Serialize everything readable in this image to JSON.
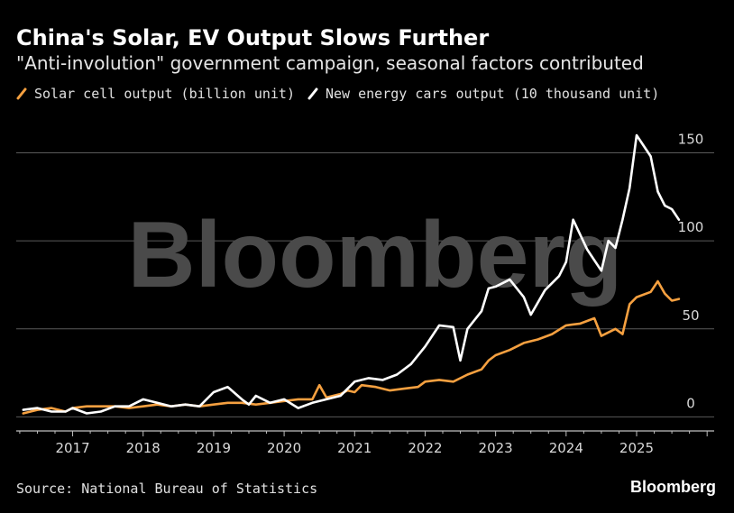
{
  "header": {
    "title": "China's Solar, EV Output Slows Further",
    "subtitle": "\"Anti-involution\" government campaign, seasonal factors contributed"
  },
  "legend": [
    {
      "label": "Solar cell output (billion unit)",
      "color": "#f5a040"
    },
    {
      "label": "New energy cars output (10 thousand unit)",
      "color": "#ffffff"
    }
  ],
  "footer": {
    "source": "Source: National Bureau of Statistics",
    "brand": "Bloomberg"
  },
  "watermark": "Bloomberg",
  "chart_data": {
    "type": "line",
    "title": "China's Solar, EV Output Slows Further",
    "subtitle": "\"Anti-involution\" government campaign, seasonal factors contributed",
    "xlim": [
      2016.2,
      2026.1
    ],
    "ylim": [
      -8,
      160
    ],
    "y_ticks": [
      0,
      50,
      100,
      150
    ],
    "y_axis_position": "right",
    "x_ticks": [
      2017,
      2018,
      2019,
      2020,
      2021,
      2022,
      2023,
      2024,
      2025
    ],
    "grid": "horizontal",
    "legend_position": "top-left",
    "series": [
      {
        "name": "Solar cell output (billion unit)",
        "color": "#f5a040",
        "points": [
          [
            2016.3,
            2
          ],
          [
            2016.5,
            4
          ],
          [
            2016.7,
            5
          ],
          [
            2016.9,
            3
          ],
          [
            2017.0,
            5
          ],
          [
            2017.2,
            6
          ],
          [
            2017.4,
            6
          ],
          [
            2017.6,
            6
          ],
          [
            2017.8,
            5
          ],
          [
            2018.0,
            6
          ],
          [
            2018.2,
            7
          ],
          [
            2018.4,
            6
          ],
          [
            2018.6,
            7
          ],
          [
            2018.8,
            6
          ],
          [
            2019.0,
            7
          ],
          [
            2019.2,
            8
          ],
          [
            2019.4,
            8
          ],
          [
            2019.6,
            7
          ],
          [
            2019.8,
            8
          ],
          [
            2020.0,
            9
          ],
          [
            2020.2,
            10
          ],
          [
            2020.4,
            10
          ],
          [
            2020.5,
            18
          ],
          [
            2020.6,
            11
          ],
          [
            2020.8,
            13
          ],
          [
            2020.9,
            15
          ],
          [
            2021.0,
            14
          ],
          [
            2021.1,
            18
          ],
          [
            2021.3,
            17
          ],
          [
            2021.5,
            15
          ],
          [
            2021.7,
            16
          ],
          [
            2021.9,
            17
          ],
          [
            2022.0,
            20
          ],
          [
            2022.2,
            21
          ],
          [
            2022.4,
            20
          ],
          [
            2022.6,
            24
          ],
          [
            2022.8,
            27
          ],
          [
            2022.9,
            32
          ],
          [
            2023.0,
            35
          ],
          [
            2023.2,
            38
          ],
          [
            2023.4,
            42
          ],
          [
            2023.6,
            44
          ],
          [
            2023.8,
            47
          ],
          [
            2024.0,
            52
          ],
          [
            2024.2,
            53
          ],
          [
            2024.4,
            56
          ],
          [
            2024.5,
            46
          ],
          [
            2024.7,
            50
          ],
          [
            2024.8,
            47
          ],
          [
            2024.9,
            64
          ],
          [
            2025.0,
            68
          ],
          [
            2025.2,
            71
          ],
          [
            2025.3,
            77
          ],
          [
            2025.4,
            70
          ],
          [
            2025.5,
            66
          ],
          [
            2025.6,
            67
          ]
        ]
      },
      {
        "name": "New energy cars output (10 thousand unit)",
        "color": "#ffffff",
        "points": [
          [
            2016.3,
            4
          ],
          [
            2016.5,
            5
          ],
          [
            2016.7,
            3
          ],
          [
            2016.9,
            3
          ],
          [
            2017.0,
            5
          ],
          [
            2017.2,
            2
          ],
          [
            2017.4,
            3
          ],
          [
            2017.6,
            6
          ],
          [
            2017.8,
            6
          ],
          [
            2018.0,
            10
          ],
          [
            2018.2,
            8
          ],
          [
            2018.4,
            6
          ],
          [
            2018.6,
            7
          ],
          [
            2018.8,
            6
          ],
          [
            2019.0,
            14
          ],
          [
            2019.2,
            17
          ],
          [
            2019.4,
            10
          ],
          [
            2019.5,
            7
          ],
          [
            2019.6,
            12
          ],
          [
            2019.8,
            8
          ],
          [
            2020.0,
            10
          ],
          [
            2020.2,
            5
          ],
          [
            2020.4,
            8
          ],
          [
            2020.6,
            10
          ],
          [
            2020.8,
            12
          ],
          [
            2021.0,
            20
          ],
          [
            2021.2,
            22
          ],
          [
            2021.4,
            21
          ],
          [
            2021.6,
            24
          ],
          [
            2021.8,
            30
          ],
          [
            2022.0,
            40
          ],
          [
            2022.2,
            52
          ],
          [
            2022.4,
            51
          ],
          [
            2022.5,
            32
          ],
          [
            2022.6,
            50
          ],
          [
            2022.8,
            60
          ],
          [
            2022.9,
            73
          ],
          [
            2023.0,
            74
          ],
          [
            2023.2,
            78
          ],
          [
            2023.4,
            68
          ],
          [
            2023.5,
            58
          ],
          [
            2023.7,
            72
          ],
          [
            2023.9,
            80
          ],
          [
            2024.0,
            88
          ],
          [
            2024.1,
            112
          ],
          [
            2024.3,
            95
          ],
          [
            2024.5,
            83
          ],
          [
            2024.6,
            100
          ],
          [
            2024.7,
            96
          ],
          [
            2024.8,
            112
          ],
          [
            2024.9,
            130
          ],
          [
            2025.0,
            160
          ],
          [
            2025.2,
            148
          ],
          [
            2025.3,
            128
          ],
          [
            2025.4,
            120
          ],
          [
            2025.5,
            118
          ],
          [
            2025.6,
            112
          ]
        ]
      }
    ]
  }
}
